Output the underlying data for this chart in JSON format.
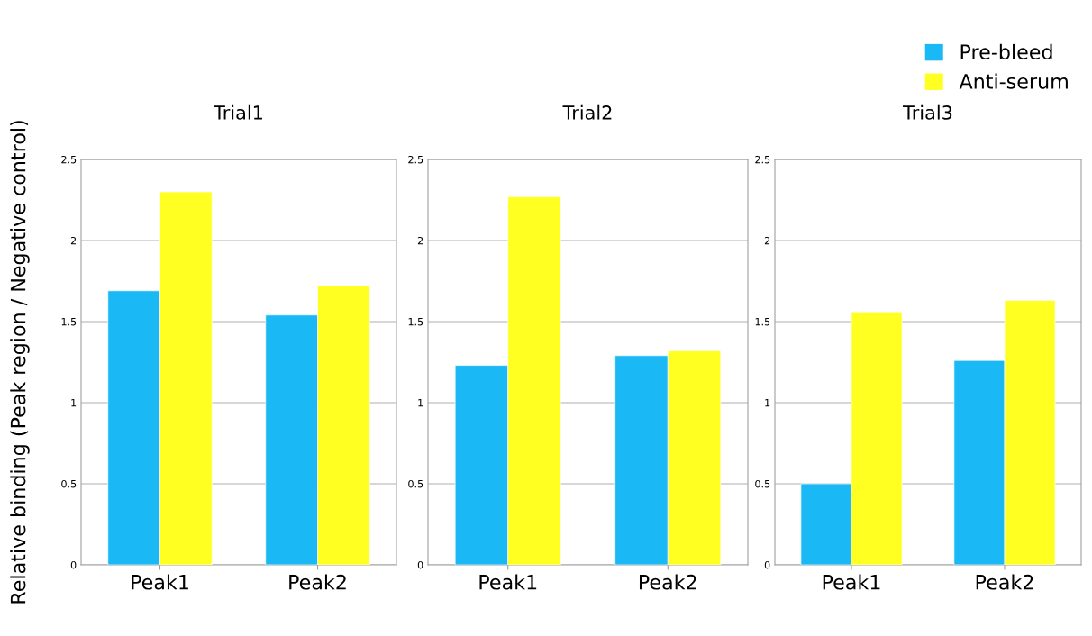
{
  "chart_data": [
    {
      "type": "bar",
      "title": "Trial1",
      "ylabel": "Relative binding (Peak region / Negative control)",
      "categories": [
        "Peak1",
        "Peak2"
      ],
      "ylim": [
        0,
        2.5
      ],
      "yticks": [
        0,
        0.5,
        1,
        1.5,
        2,
        2.5
      ],
      "grid": "y",
      "legend": false,
      "series": [
        {
          "color": "#1ab8f5",
          "values": [
            1.69,
            1.54
          ]
        },
        {
          "color": "#ffff22",
          "values": [
            2.3,
            1.72
          ]
        }
      ]
    },
    {
      "type": "bar",
      "title": "Trial2",
      "categories": [
        "Peak1",
        "Peak2"
      ],
      "ylim": [
        0,
        2.5
      ],
      "yticks": [
        0,
        0.5,
        1,
        1.5,
        2,
        2.5
      ],
      "grid": "y",
      "legend": false,
      "series": [
        {
          "color": "#1ab8f5",
          "values": [
            1.23,
            1.29
          ]
        },
        {
          "color": "#ffff22",
          "values": [
            2.27,
            1.32
          ]
        }
      ]
    },
    {
      "type": "bar",
      "title": "Trial3",
      "categories": [
        "Peak1",
        "Peak2"
      ],
      "ylim": [
        0,
        2.5
      ],
      "yticks": [
        0,
        0.5,
        1,
        1.5,
        2,
        2.5
      ],
      "grid": "y",
      "legend": "top right",
      "series": [
        {
          "name": "Pre-bleed",
          "color": "#1ab8f5",
          "values": [
            0.5,
            1.26
          ]
        },
        {
          "name": "Anti-serum",
          "color": "#ffff22",
          "values": [
            1.56,
            1.63
          ]
        }
      ]
    }
  ]
}
